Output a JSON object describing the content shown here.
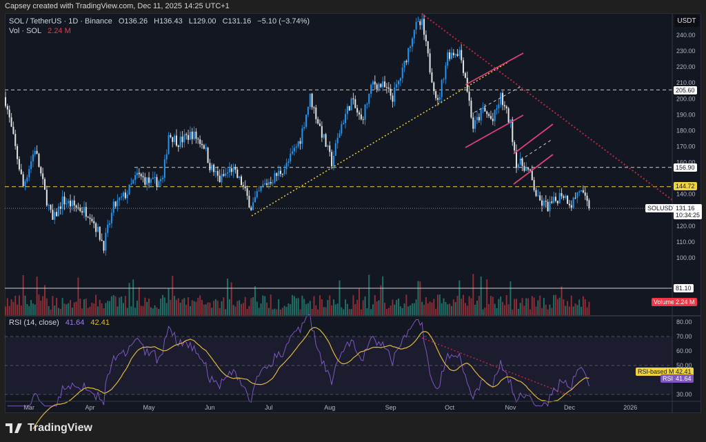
{
  "credit": "Capsey created with TradingView.com, Dec 11, 2025 14:25 UTC+1",
  "legend": {
    "symbol": "SOL / TetherUS · 1D · Binance",
    "open": "O136.26",
    "high": "H136.43",
    "low": "L129.00",
    "close": "C131.16",
    "change": "−5.10 (−3.74%)",
    "vol_label": "Vol · SOL",
    "vol_value": "2.24 M",
    "rsi_label": "RSI (14, close)",
    "rsi_value": "41.64",
    "rsi_ma_value": "42.41"
  },
  "currency": "USDT",
  "badges": {
    "level_205": "205.60",
    "level_156": "156.90",
    "level_144": "144.72",
    "symbol_tag": "SOLUSDT",
    "last_price": "131.16",
    "countdown": "10:34:25",
    "vol_level": "81.10",
    "volume_tag": "Volume",
    "volume_value": "2.24 M",
    "rsi_ma_tag": "RSI-based MA",
    "rsi_ma_value": "42.41",
    "rsi_tag": "RSI",
    "rsi_value": "41.64"
  },
  "brand": "TradingView",
  "colors": {
    "up": "#2196f3",
    "down": "#e6e6e6",
    "pink": "#e0407a",
    "yellow": "#f0d43a",
    "red": "#c2263c",
    "rsi": "#7e57c2",
    "rsi_ma": "#e2b93b"
  },
  "chart_data": {
    "type": "candlestick",
    "title": "SOL / TetherUS · 1D · Binance",
    "price_ticks": [
      240,
      230,
      220,
      210,
      200,
      190,
      180,
      170,
      160,
      140,
      120,
      110,
      100
    ],
    "rsi_ticks": [
      80,
      70,
      60,
      50,
      30
    ],
    "ylim": [
      100,
      250
    ],
    "time_labels": [
      {
        "label": "Mar",
        "day": 12
      },
      {
        "label": "Apr",
        "day": 43
      },
      {
        "label": "May",
        "day": 73
      },
      {
        "label": "Jun",
        "day": 104
      },
      {
        "label": "Jul",
        "day": 134
      },
      {
        "label": "Aug",
        "day": 165
      },
      {
        "label": "Sep",
        "day": 196
      },
      {
        "label": "Oct",
        "day": 226
      },
      {
        "label": "Nov",
        "day": 257
      },
      {
        "label": "Dec",
        "day": 287
      },
      {
        "label": "2026",
        "day": 318
      }
    ],
    "close_path": [
      [
        0,
        199
      ],
      [
        4,
        175
      ],
      [
        9,
        145
      ],
      [
        15,
        169
      ],
      [
        20,
        141
      ],
      [
        24,
        123
      ],
      [
        29,
        136
      ],
      [
        36,
        132
      ],
      [
        43,
        128
      ],
      [
        50,
        108
      ],
      [
        55,
        132
      ],
      [
        62,
        141
      ],
      [
        67,
        152
      ],
      [
        74,
        147
      ],
      [
        80,
        149
      ],
      [
        83,
        178
      ],
      [
        88,
        173
      ],
      [
        95,
        178
      ],
      [
        101,
        171
      ],
      [
        104,
        158
      ],
      [
        109,
        149
      ],
      [
        115,
        156
      ],
      [
        120,
        147
      ],
      [
        125,
        132
      ],
      [
        131,
        145
      ],
      [
        138,
        152
      ],
      [
        143,
        158
      ],
      [
        150,
        175
      ],
      [
        155,
        201
      ],
      [
        160,
        182
      ],
      [
        166,
        160
      ],
      [
        171,
        184
      ],
      [
        176,
        199
      ],
      [
        181,
        186
      ],
      [
        187,
        210
      ],
      [
        192,
        208
      ],
      [
        197,
        201
      ],
      [
        202,
        217
      ],
      [
        208,
        245
      ],
      [
        212,
        247
      ],
      [
        216,
        219
      ],
      [
        220,
        197
      ],
      [
        225,
        228
      ],
      [
        231,
        230
      ],
      [
        234,
        214
      ],
      [
        238,
        182
      ],
      [
        243,
        193
      ],
      [
        248,
        186
      ],
      [
        252,
        201
      ],
      [
        257,
        184
      ],
      [
        260,
        160
      ],
      [
        264,
        158
      ],
      [
        267,
        152
      ],
      [
        271,
        136
      ],
      [
        276,
        132
      ],
      [
        280,
        136
      ],
      [
        283,
        141
      ],
      [
        288,
        134
      ],
      [
        292,
        143
      ],
      [
        297,
        131.16
      ]
    ],
    "horizontal_levels": [
      205.6,
      156.9,
      144.72,
      131.16
    ],
    "rsi_levels": [
      70,
      50,
      30
    ]
  }
}
